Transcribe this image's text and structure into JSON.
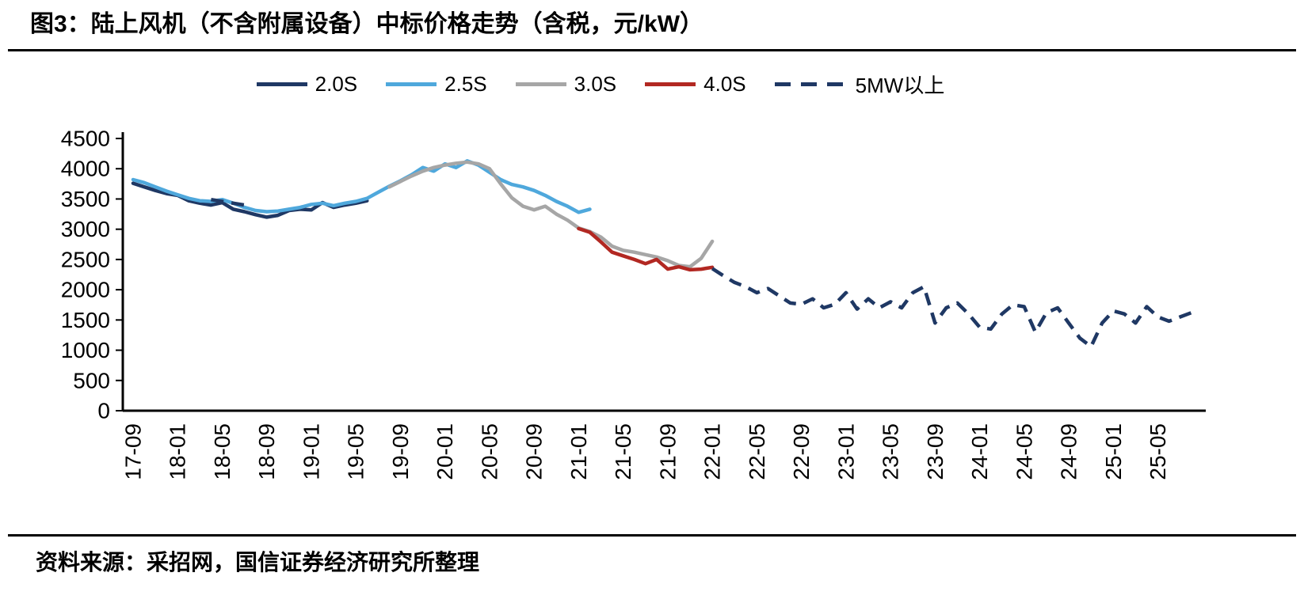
{
  "title": "图3：陆上风机（不含附属设备）中标价格走势（含税，元/kW）",
  "source": "资料来源：采招网，国信证券经济研究所整理",
  "colors": {
    "navy": "#1F3864",
    "light_blue": "#4FA8DC",
    "gray": "#A6A6A6",
    "red": "#B22822",
    "axis": "#000000",
    "text": "#000000"
  },
  "legend": [
    {
      "label": "2.0S",
      "color": "#1F3864",
      "dashed": false
    },
    {
      "label": "2.5S",
      "color": "#4FA8DC",
      "dashed": false
    },
    {
      "label": "3.0S",
      "color": "#A6A6A6",
      "dashed": false
    },
    {
      "label": "4.0S",
      "color": "#B22822",
      "dashed": false
    },
    {
      "label": "5MW以上",
      "color": "#1F3864",
      "dashed": true
    }
  ],
  "chart_data": {
    "type": "line",
    "title": "陆上风机（不含附属设备）中标价格走势（含税，元/kW）",
    "xlabel": "",
    "ylabel": "",
    "ylim": [
      0,
      4500
    ],
    "ytick_step": 500,
    "grid": false,
    "legend_position": "top-center",
    "x_unit": "year-month (YY-MM), monthly from 17-09 to 25-08",
    "y_ticks": [
      0,
      500,
      1000,
      1500,
      2000,
      2500,
      3000,
      3500,
      4000,
      4500
    ],
    "x_ticks": [
      "17-09",
      "18-01",
      "18-05",
      "18-09",
      "19-01",
      "19-05",
      "19-09",
      "20-01",
      "20-05",
      "20-09",
      "21-01",
      "21-05",
      "21-09",
      "22-01",
      "22-05",
      "22-09",
      "23-01",
      "23-05",
      "23-09",
      "24-01",
      "24-05",
      "24-09",
      "25-01",
      "25-05"
    ],
    "series": [
      {
        "name": "2.0S",
        "color": "#1F3864",
        "dashed": false,
        "segments": [
          {
            "start": "17-09",
            "values": [
              3760,
              3700,
              3640,
              3590,
              3560,
              3470,
              3430,
              3400,
              3440,
              3330,
              3290,
              3240,
              3200,
              3230,
              3310,
              3330,
              3320,
              3440,
              3360,
              3400,
              3430,
              3470
            ]
          }
        ]
      },
      {
        "name": "2.5S",
        "color": "#4FA8DC",
        "dashed": false,
        "segments": [
          {
            "start": "17-09",
            "values": [
              3820,
              3770,
              3700,
              3630,
              3570,
              3510,
              3470,
              3460,
              3490,
              3430,
              3360,
              3310,
              3290,
              3300,
              3330,
              3360,
              3410,
              3430,
              3390,
              3430,
              3460,
              3510,
              3610,
              3710,
              3800,
              3900,
              4020,
              3960,
              4080,
              4020,
              4130,
              4060,
              3940,
              3820,
              3740,
              3700,
              3640,
              3560,
              3460,
              3380,
              3280,
              3330
            ]
          }
        ]
      },
      {
        "name": "3.0S",
        "color": "#A6A6A6",
        "dashed": false,
        "segments": [
          {
            "start": "19-08",
            "values": [
              3700,
              3790,
              3880,
              3960,
              4020,
              4060,
              4090,
              4110,
              4080,
              4000,
              3750,
              3520,
              3380,
              3320,
              3380,
              3250,
              3150,
              3020,
              2960,
              2870,
              2720,
              2650,
              2620,
              2580,
              2540,
              2480,
              2400,
              2380,
              2520,
              2800
            ]
          }
        ]
      },
      {
        "name": "4.0S",
        "color": "#B22822",
        "dashed": false,
        "segments": [
          {
            "start": "21-01",
            "values": [
              3010,
              2950,
              2790,
              2620,
              2560,
              2500,
              2430,
              2500,
              2340,
              2380,
              2330,
              2340,
              2370
            ]
          }
        ]
      },
      {
        "name": "5MW以上",
        "color": "#1F3864",
        "dashed": true,
        "segments": [
          {
            "start": "18-04",
            "values": [
              3490,
              3460,
              3430,
              3400
            ]
          },
          {
            "start": "22-01",
            "values": [
              2350,
              2230,
              2120,
              2050,
              1950,
              2020,
              1900,
              1780,
              1760,
              1850,
              1700,
              1760,
              1950,
              1680,
              1850,
              1700,
              1800,
              1700,
              1950,
              2050,
              1450,
              1700,
              1780,
              1600,
              1380,
              1350,
              1600,
              1750,
              1720,
              1300,
              1620,
              1700,
              1450,
              1200,
              1060,
              1450,
              1650,
              1600,
              1450,
              1720,
              1550,
              1480,
              1550,
              1620
            ]
          }
        ]
      }
    ]
  }
}
